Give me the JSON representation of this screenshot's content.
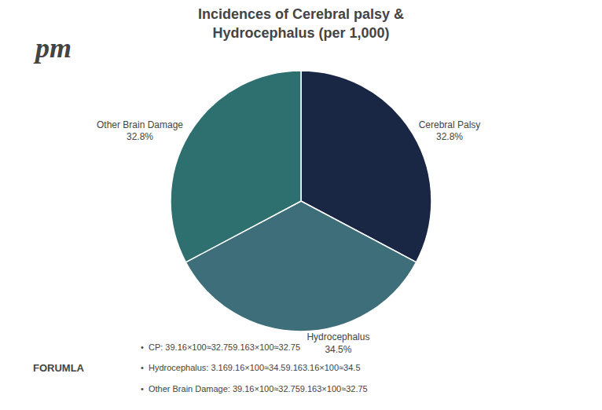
{
  "chart_data": {
    "type": "pie",
    "title": "Incidences of Cerebral palsy &\nHydrocephalus (per 1,000)",
    "categories": [
      "Cerebral Palsy",
      "Hydrocephalus",
      "Other Brain Damage"
    ],
    "values": [
      32.8,
      34.5,
      32.8
    ],
    "value_labels": [
      "32.8%",
      "34.5%",
      "32.8%"
    ],
    "colors": [
      "#1a2744",
      "#3d6e7a",
      "#2e7070"
    ],
    "annotations": [
      "pm",
      "FORUMLA",
      "•  CP: 39.16×100≈32.759.163×100≈32.75",
      "•  Hydrocephalus: 3.169.16×100≈34.59.163.16×100≈34.5",
      "•  Other Brain Damage: 39.16×100≈32.759.163×100≈32.75"
    ]
  }
}
